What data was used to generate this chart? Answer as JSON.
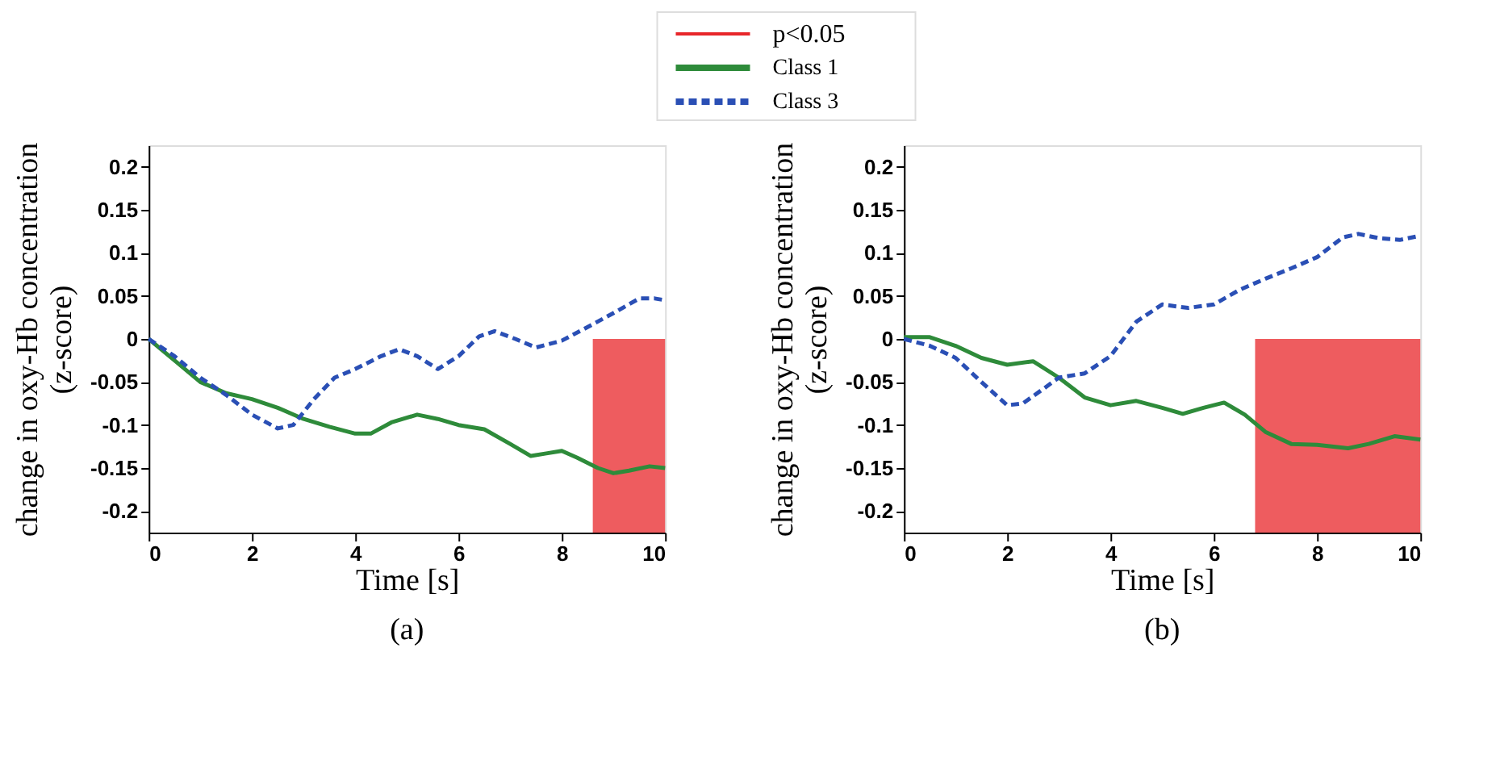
{
  "chart_data": [
    {
      "type": "line",
      "xlabel": "Time [s]",
      "ylabel": "change in oxy-Hb concentration\n(z-score)",
      "annotations": [
        "(a)"
      ],
      "legend": "top",
      "grid": false,
      "marker": "none",
      "xlim": [
        0,
        10
      ],
      "xticks": [
        0,
        2,
        4,
        6,
        8,
        10
      ],
      "ylim": [
        -0.225,
        0.225
      ],
      "yticks": [
        -0.2,
        -0.15,
        -0.1,
        -0.05,
        0,
        0.05,
        0.1,
        0.15,
        0.2
      ],
      "bands": [
        {
          "axis": "x",
          "from": 8.6,
          "to": 10,
          "label": "p<0.05",
          "color": "#e8262a"
        }
      ],
      "series": [
        {
          "name": "Class 1",
          "color": "#2e8b3a",
          "line_style": "solid",
          "x": [
            0,
            0.5,
            1,
            1.5,
            2,
            2.5,
            3,
            3.5,
            4,
            4.3,
            4.7,
            5.2,
            5.6,
            6,
            6.5,
            7,
            7.4,
            7.7,
            8,
            8.3,
            8.7,
            9,
            9.3,
            9.7,
            10
          ],
          "values": [
            0,
            -0.025,
            -0.05,
            -0.063,
            -0.07,
            -0.08,
            -0.093,
            -0.102,
            -0.11,
            -0.11,
            -0.097,
            -0.088,
            -0.093,
            -0.1,
            -0.105,
            -0.122,
            -0.136,
            -0.133,
            -0.13,
            -0.138,
            -0.15,
            -0.156,
            -0.153,
            -0.148,
            -0.15
          ]
        },
        {
          "name": "Class 3",
          "color": "#2a4fb5",
          "line_style": "dashed",
          "x": [
            0,
            0.5,
            1,
            1.5,
            2,
            2.5,
            2.8,
            3.2,
            3.6,
            4,
            4.5,
            4.85,
            5.2,
            5.6,
            6,
            6.4,
            6.7,
            7.1,
            7.5,
            8,
            8.6,
            9,
            9.5,
            9.8,
            10
          ],
          "values": [
            0,
            -0.02,
            -0.045,
            -0.065,
            -0.088,
            -0.104,
            -0.1,
            -0.07,
            -0.045,
            -0.035,
            -0.02,
            -0.012,
            -0.02,
            -0.035,
            -0.02,
            0.003,
            0.009,
            0.0,
            -0.01,
            -0.002,
            0.017,
            0.03,
            0.047,
            0.047,
            0.045
          ]
        }
      ]
    },
    {
      "type": "line",
      "xlabel": "Time [s]",
      "ylabel": "change in oxy-Hb concentration\n(z-score)",
      "annotations": [
        "(b)"
      ],
      "grid": false,
      "marker": "none",
      "xlim": [
        0,
        10
      ],
      "xticks": [
        0,
        2,
        4,
        6,
        8,
        10
      ],
      "ylim": [
        -0.225,
        0.225
      ],
      "yticks": [
        -0.2,
        -0.15,
        -0.1,
        -0.05,
        0,
        0.05,
        0.1,
        0.15,
        0.2
      ],
      "bands": [
        {
          "axis": "x",
          "from": 6.8,
          "to": 10,
          "color": "#e8262a"
        }
      ],
      "series": [
        {
          "color": "#2e8b3a",
          "line_style": "solid",
          "x": [
            0,
            0.5,
            1,
            1.5,
            2,
            2.5,
            3,
            3.5,
            4,
            4.5,
            5,
            5.4,
            5.8,
            6.2,
            6.6,
            7,
            7.5,
            8,
            8.6,
            9,
            9.5,
            10
          ],
          "values": [
            0.002,
            0.002,
            -0.008,
            -0.022,
            -0.03,
            -0.026,
            -0.045,
            -0.068,
            -0.077,
            -0.072,
            -0.08,
            -0.087,
            -0.08,
            -0.074,
            -0.088,
            -0.108,
            -0.122,
            -0.123,
            -0.127,
            -0.122,
            -0.113,
            -0.117
          ]
        },
        {
          "color": "#2a4fb5",
          "line_style": "dashed",
          "x": [
            0,
            0.5,
            1,
            1.5,
            2,
            2.3,
            2.7,
            3,
            3.5,
            4,
            4.5,
            5,
            5.5,
            6,
            6.5,
            7,
            7.5,
            8,
            8.5,
            8.8,
            9.2,
            9.6,
            10
          ],
          "values": [
            0,
            -0.008,
            -0.022,
            -0.05,
            -0.077,
            -0.075,
            -0.058,
            -0.045,
            -0.04,
            -0.02,
            0.02,
            0.04,
            0.036,
            0.04,
            0.057,
            0.07,
            0.082,
            0.095,
            0.118,
            0.122,
            0.117,
            0.115,
            0.12
          ]
        }
      ]
    }
  ]
}
